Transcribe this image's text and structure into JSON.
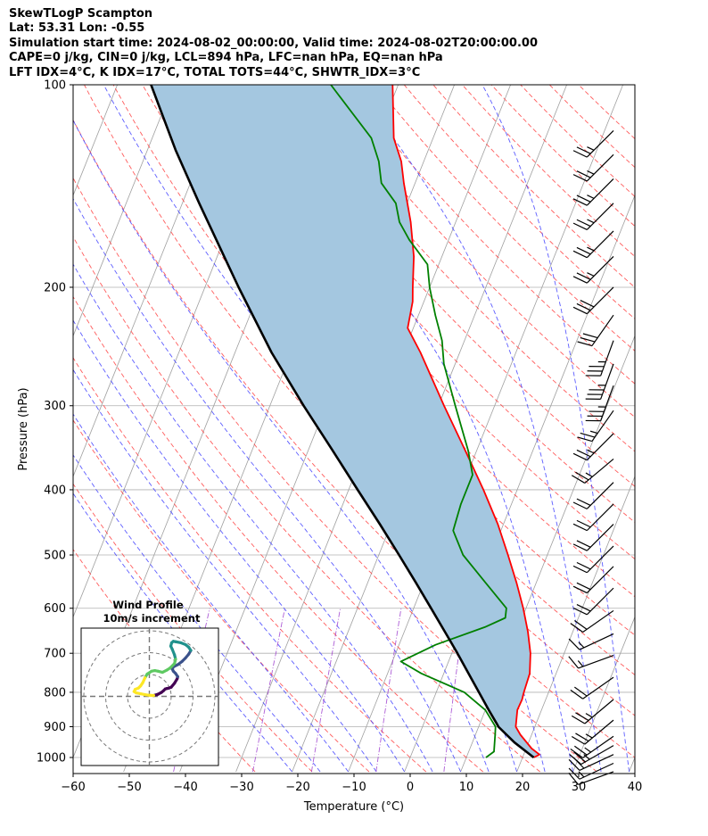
{
  "header": {
    "lines": [
      "SkewTLogP Scampton",
      "Lat: 53.31   Lon: -0.55",
      "Simulation start time: 2024-08-02_00:00:00, Valid time: 2024-08-02T20:00:00.00",
      "CAPE=0 j/kg, CIN=0 j/kg, LCL=894 hPa, LFC=nan hPa, EQ=nan hPa",
      "LFT IDX=4°C, K IDX=17°C, TOTAL TOTS=44°C, SHWTR_IDX=3°C"
    ]
  },
  "chart_data": [
    {
      "type": "line",
      "chart": "skew-t log-p",
      "xlabel": "Temperature (°C)",
      "ylabel": "Pressure (hPa)",
      "xlim": [
        -60,
        40
      ],
      "ylim": [
        1050,
        100
      ],
      "y_scale": "log",
      "grid": true,
      "x_ticks": [
        -60,
        -50,
        -40,
        -30,
        -20,
        -10,
        0,
        10,
        20,
        30,
        40
      ],
      "x_tick_labels": [
        "−60",
        "−50",
        "−40",
        "−30",
        "−20",
        "−10",
        "0",
        "10",
        "20",
        "30",
        "40"
      ],
      "y_ticks": [
        1000,
        900,
        800,
        700,
        600,
        500,
        400,
        300,
        200,
        100
      ],
      "colors": {
        "temperature": "#ff0000",
        "dewpoint": "#008000",
        "parcel": "#000000",
        "shade": "#a4c7e0",
        "dry_adiabat": "#ff4040",
        "moist_adiabat": "#4040ff",
        "mixing_ratio": "#9933cc",
        "isotherm": "#a0a0a0"
      },
      "series": [
        {
          "role": "temperature",
          "points": [
            [
              1000,
              22
            ],
            [
              990,
              22.8
            ],
            [
              970,
              21
            ],
            [
              925,
              18
            ],
            [
              900,
              16.6
            ],
            [
              850,
              15.7
            ],
            [
              820,
              15.8
            ],
            [
              800,
              15.6
            ],
            [
              750,
              15.3
            ],
            [
              700,
              14
            ],
            [
              650,
              12
            ],
            [
              600,
              9.5
            ],
            [
              550,
              6.5
            ],
            [
              500,
              3
            ],
            [
              450,
              -1
            ],
            [
              400,
              -6
            ],
            [
              350,
              -12
            ],
            [
              300,
              -19
            ],
            [
              250,
              -27
            ],
            [
              230,
              -31
            ],
            [
              210,
              -32
            ],
            [
              200,
              -33
            ],
            [
              180,
              -35
            ],
            [
              160,
              -38
            ],
            [
              140,
              -42
            ],
            [
              130,
              -44
            ],
            [
              120,
              -47
            ],
            [
              100,
              -51
            ]
          ]
        },
        {
          "role": "dewpoint",
          "points": [
            [
              1000,
              13.5
            ],
            [
              980,
              14.5
            ],
            [
              925,
              13.5
            ],
            [
              900,
              13
            ],
            [
              850,
              10
            ],
            [
              800,
              5
            ],
            [
              750,
              -4
            ],
            [
              720,
              -8.5
            ],
            [
              680,
              -3.5
            ],
            [
              640,
              4
            ],
            [
              620,
              7
            ],
            [
              600,
              6.5
            ],
            [
              550,
              1
            ],
            [
              500,
              -5
            ],
            [
              460,
              -8.5
            ],
            [
              420,
              -9
            ],
            [
              380,
              -9
            ],
            [
              350,
              -11.5
            ],
            [
              300,
              -17
            ],
            [
              260,
              -22
            ],
            [
              240,
              -24
            ],
            [
              220,
              -27
            ],
            [
              200,
              -30
            ],
            [
              185,
              -32
            ],
            [
              170,
              -37
            ],
            [
              160,
              -40
            ],
            [
              150,
              -42
            ],
            [
              140,
              -46
            ],
            [
              130,
              -48
            ],
            [
              120,
              -51
            ],
            [
              100,
              -62
            ]
          ]
        },
        {
          "role": "parcel",
          "points": [
            [
              1000,
              22
            ],
            [
              950,
              17.5
            ],
            [
              900,
              13.5
            ],
            [
              894,
              13.2
            ],
            [
              850,
              10.6
            ],
            [
              800,
              7.6
            ],
            [
              750,
              4.4
            ],
            [
              700,
              1
            ],
            [
              650,
              -2.8
            ],
            [
              600,
              -6.9
            ],
            [
              550,
              -11.4
            ],
            [
              500,
              -16.4
            ],
            [
              450,
              -22
            ],
            [
              400,
              -28.4
            ],
            [
              350,
              -35.6
            ],
            [
              300,
              -44
            ],
            [
              250,
              -53.5
            ],
            [
              200,
              -64
            ],
            [
              150,
              -77
            ],
            [
              125,
              -85
            ],
            [
              100,
              -94
            ]
          ]
        }
      ],
      "winds_unit": "kt",
      "winds": [
        {
          "p": 1050,
          "speed": 10,
          "dir": 250
        },
        {
          "p": 1020,
          "speed": 15,
          "dir": 245
        },
        {
          "p": 990,
          "speed": 20,
          "dir": 245
        },
        {
          "p": 960,
          "speed": 25,
          "dir": 240
        },
        {
          "p": 930,
          "speed": 25,
          "dir": 235
        },
        {
          "p": 880,
          "speed": 25,
          "dir": 230
        },
        {
          "p": 820,
          "speed": 25,
          "dir": 230
        },
        {
          "p": 760,
          "speed": 20,
          "dir": 235
        },
        {
          "p": 705,
          "speed": 15,
          "dir": 250
        },
        {
          "p": 655,
          "speed": 15,
          "dir": 245
        },
        {
          "p": 605,
          "speed": 20,
          "dir": 235
        },
        {
          "p": 560,
          "speed": 20,
          "dir": 225
        },
        {
          "p": 520,
          "speed": 20,
          "dir": 225
        },
        {
          "p": 485,
          "speed": 20,
          "dir": 225
        },
        {
          "p": 450,
          "speed": 20,
          "dir": 225
        },
        {
          "p": 420,
          "speed": 20,
          "dir": 225
        },
        {
          "p": 390,
          "speed": 20,
          "dir": 225
        },
        {
          "p": 360,
          "speed": 25,
          "dir": 230
        },
        {
          "p": 330,
          "speed": 25,
          "dir": 225
        },
        {
          "p": 305,
          "speed": 25,
          "dir": 215
        },
        {
          "p": 280,
          "speed": 35,
          "dir": 200
        },
        {
          "p": 260,
          "speed": 35,
          "dir": 200
        },
        {
          "p": 240,
          "speed": 35,
          "dir": 200
        },
        {
          "p": 220,
          "speed": 30,
          "dir": 215
        },
        {
          "p": 200,
          "speed": 30,
          "dir": 225
        },
        {
          "p": 180,
          "speed": 25,
          "dir": 225
        },
        {
          "p": 165,
          "speed": 25,
          "dir": 225
        },
        {
          "p": 150,
          "speed": 25,
          "dir": 225
        },
        {
          "p": 138,
          "speed": 25,
          "dir": 225
        },
        {
          "p": 127,
          "speed": 25,
          "dir": 225
        },
        {
          "p": 117,
          "speed": 25,
          "dir": 225
        }
      ]
    },
    {
      "type": "line",
      "chart": "hodograph",
      "title": "Wind Profile",
      "subtitle": "10m/s increment",
      "colormap": [
        "#440154",
        "#3b528b",
        "#21918c",
        "#5ec962",
        "#fde725"
      ],
      "points": [
        [
          2,
          0.4
        ],
        [
          4,
          1
        ],
        [
          5.5,
          1.8
        ],
        [
          6.5,
          2.6
        ],
        [
          7.3,
          3.4
        ],
        [
          8,
          3.6
        ],
        [
          9,
          3.8
        ],
        [
          10,
          4.2
        ],
        [
          11.5,
          6
        ],
        [
          12.7,
          8
        ],
        [
          13,
          9
        ],
        [
          12,
          10.5
        ],
        [
          11,
          11.5
        ],
        [
          10.5,
          12.5
        ],
        [
          11,
          13.5
        ],
        [
          13,
          14.5
        ],
        [
          15,
          16
        ],
        [
          16.5,
          17.5
        ],
        [
          18,
          19.3
        ],
        [
          19,
          21
        ],
        [
          18,
          22.5
        ],
        [
          16.5,
          23.7
        ],
        [
          14.5,
          24.5
        ],
        [
          12,
          25
        ],
        [
          11,
          25.2
        ],
        [
          10.2,
          24.5
        ],
        [
          9.8,
          23
        ],
        [
          10.5,
          21.5
        ],
        [
          11.5,
          19
        ],
        [
          12,
          17
        ],
        [
          11.5,
          15
        ],
        [
          9.5,
          13
        ],
        [
          8,
          12
        ],
        [
          6,
          11
        ],
        [
          4,
          11.5
        ],
        [
          2.5,
          11.8
        ],
        [
          1,
          11.5
        ],
        [
          -1,
          10.2
        ],
        [
          -2,
          8.5
        ],
        [
          -3,
          6.3
        ],
        [
          -4,
          4.8
        ],
        [
          -5,
          3.8
        ],
        [
          -6.5,
          3.2
        ],
        [
          -7,
          2.2
        ],
        [
          -6,
          1.6
        ],
        [
          -4,
          1.2
        ],
        [
          -2,
          0.8
        ],
        [
          0,
          0.5
        ],
        [
          2,
          0.4
        ]
      ]
    }
  ]
}
